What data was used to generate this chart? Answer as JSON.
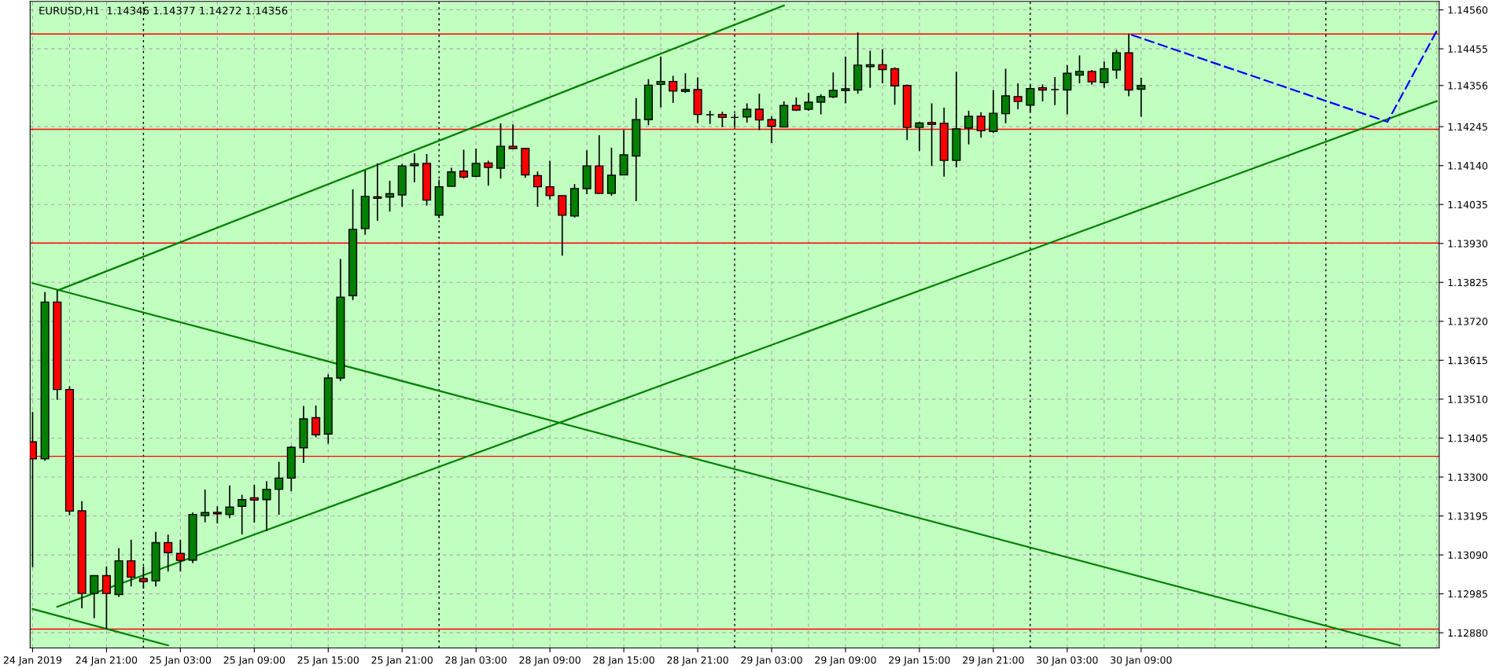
{
  "chart_data": {
    "type": "candlestick",
    "title": "EURUSD,H1  1.14346 1.14377 1.14272 1.14356",
    "categories": [
      "24 Jan 2019",
      null,
      null,
      null,
      null,
      null,
      "24 Jan 21:00",
      null,
      null,
      null,
      null,
      null,
      "25 Jan 03:00",
      null,
      null,
      null,
      null,
      null,
      "25 Jan 09:00",
      null,
      null,
      null,
      null,
      null,
      "25 Jan 15:00",
      null,
      null,
      null,
      null,
      null,
      "25 Jan 21:00",
      null,
      null,
      null,
      null,
      null,
      "28 Jan 03:00",
      null,
      null,
      null,
      null,
      null,
      "28 Jan 09:00",
      null,
      null,
      null,
      null,
      null,
      "28 Jan 15:00",
      null,
      null,
      null,
      null,
      null,
      "28 Jan 21:00",
      null,
      null,
      null,
      null,
      null,
      "29 Jan 03:00",
      null,
      null,
      null,
      null,
      null,
      "29 Jan 09:00",
      null,
      null,
      null,
      null,
      null,
      "29 Jan 15:00",
      null,
      null,
      null,
      null,
      null,
      "29 Jan 21:00",
      null,
      null,
      null,
      null,
      null,
      "30 Jan 03:00",
      null,
      null,
      null,
      null,
      null,
      "30 Jan 09:00",
      null,
      null,
      null,
      null,
      null,
      null,
      null,
      null,
      null,
      null,
      null,
      null,
      null,
      null,
      null,
      null,
      null,
      null,
      null,
      null,
      null,
      null,
      null,
      null
    ],
    "ylim": [
      1.12839,
      1.14583
    ],
    "yticks": [
      {
        "value": 1.1288,
        "label": "1.12880"
      },
      {
        "value": 1.12985,
        "label": "1.12985"
      },
      {
        "value": 1.1309,
        "label": "1.13090"
      },
      {
        "value": 1.13195,
        "label": "1.13195"
      },
      {
        "value": 1.133,
        "label": "1.13300"
      },
      {
        "value": 1.13405,
        "label": "1.13405"
      },
      {
        "value": 1.1351,
        "label": "1.13510"
      },
      {
        "value": 1.13615,
        "label": "1.13615"
      },
      {
        "value": 1.1372,
        "label": "1.13720"
      },
      {
        "value": 1.13825,
        "label": "1.13825"
      },
      {
        "value": 1.1393,
        "label": "1.13930"
      },
      {
        "value": 1.14035,
        "label": "1.14035"
      },
      {
        "value": 1.1414,
        "label": "1.14140"
      },
      {
        "value": 1.14245,
        "label": "1.14245"
      },
      {
        "value": 1.14356,
        "label": "1.14356"
      },
      {
        "value": 1.14455,
        "label": "1.14455"
      },
      {
        "value": 1.1456,
        "label": "1.14560"
      }
    ],
    "grid": true,
    "legend": false,
    "ref_lines": [
      {
        "axis": "y",
        "value": 1.14495,
        "color": "#ff0000",
        "line_style": "solid"
      },
      {
        "axis": "y",
        "value": 1.14238,
        "color": "#ff0000",
        "line_style": "solid"
      },
      {
        "axis": "y",
        "value": 1.13931,
        "color": "#ff0000",
        "line_style": "solid"
      },
      {
        "axis": "y",
        "value": 1.13356,
        "color": "#ff0000",
        "line_style": "solid"
      },
      {
        "axis": "y",
        "value": 1.1289,
        "color": "#ff0000",
        "line_style": "solid"
      }
    ],
    "series": [
      {
        "type": "line",
        "color": "#008000",
        "line_style": "solid",
        "values": [
          null,
          null,
          1.13803,
          null,
          null,
          null,
          null,
          null,
          null,
          null,
          null,
          null,
          null,
          null,
          null,
          null,
          null,
          null,
          null,
          null,
          null,
          null,
          null,
          null,
          null,
          null,
          null,
          null,
          null,
          null,
          null,
          null,
          null,
          null,
          null,
          null,
          null,
          null,
          null,
          null,
          null,
          null,
          null,
          null,
          null,
          null,
          null,
          null,
          null,
          null,
          null,
          null,
          null,
          null,
          null,
          null,
          null,
          null,
          null,
          null,
          null,
          1.14572,
          null,
          null,
          null,
          null,
          null,
          null,
          null,
          null,
          null,
          null,
          null,
          null,
          null,
          null,
          null,
          null,
          null,
          null,
          null,
          null,
          null,
          null,
          null,
          null,
          null,
          null,
          null,
          null,
          null,
          null,
          null,
          null,
          null,
          null,
          null,
          null,
          null,
          null,
          null,
          null,
          null,
          null,
          null,
          null,
          null,
          null,
          null,
          null,
          null,
          null,
          null,
          null,
          null
        ]
      },
      {
        "type": "line",
        "color": "#008000",
        "line_style": "solid",
        "values": [
          null,
          null,
          1.1295,
          null,
          null,
          null,
          null,
          null,
          null,
          null,
          null,
          null,
          null,
          null,
          null,
          null,
          null,
          null,
          null,
          null,
          null,
          null,
          null,
          null,
          null,
          null,
          null,
          null,
          null,
          null,
          null,
          null,
          null,
          null,
          null,
          null,
          null,
          null,
          null,
          null,
          null,
          null,
          null,
          null,
          null,
          null,
          null,
          null,
          null,
          null,
          null,
          null,
          null,
          null,
          null,
          null,
          null,
          null,
          null,
          null,
          null,
          null,
          null,
          null,
          null,
          null,
          null,
          null,
          null,
          null,
          null,
          null,
          null,
          null,
          null,
          null,
          null,
          null,
          null,
          null,
          null,
          null,
          null,
          null,
          null,
          null,
          null,
          null,
          null,
          null,
          null,
          null,
          null,
          null,
          null,
          null,
          null,
          null,
          null,
          null,
          null,
          null,
          null,
          null,
          null,
          null,
          null,
          null,
          null,
          null,
          null,
          null,
          null,
          null,
          1.14314
        ]
      },
      {
        "type": "line",
        "color": "#008000",
        "line_style": "solid",
        "values": [
          1.13823,
          null,
          null,
          null,
          null,
          null,
          null,
          null,
          null,
          null,
          null,
          null,
          null,
          null,
          null,
          null,
          null,
          null,
          null,
          null,
          null,
          null,
          null,
          null,
          null,
          null,
          null,
          null,
          null,
          null,
          null,
          null,
          null,
          null,
          null,
          null,
          null,
          null,
          null,
          null,
          null,
          null,
          null,
          null,
          null,
          null,
          null,
          null,
          null,
          null,
          null,
          null,
          null,
          null,
          null,
          null,
          null,
          null,
          null,
          null,
          null,
          null,
          null,
          null,
          null,
          null,
          null,
          null,
          null,
          null,
          null,
          null,
          null,
          null,
          null,
          null,
          null,
          null,
          null,
          null,
          null,
          null,
          null,
          null,
          null,
          null,
          null,
          null,
          null,
          null,
          null,
          null,
          null,
          null,
          null,
          null,
          null,
          null,
          null,
          null,
          null,
          null,
          null,
          null,
          null,
          null,
          null,
          null,
          null,
          null,
          null,
          1.12846,
          null,
          null,
          null
        ]
      },
      {
        "type": "line",
        "color": "#008000",
        "line_style": "solid",
        "values": [
          1.12944,
          null,
          null,
          null,
          null,
          null,
          null,
          null,
          null,
          null,
          null,
          1.12846,
          null,
          null,
          null,
          null,
          null,
          null,
          null,
          null,
          null,
          null,
          null,
          null,
          null,
          null,
          null,
          null,
          null,
          null,
          null,
          null,
          null,
          null,
          null,
          null,
          null,
          null,
          null,
          null,
          null,
          null,
          null,
          null,
          null,
          null,
          null,
          null,
          null,
          null,
          null,
          null,
          null,
          null,
          null,
          null,
          null,
          null,
          null,
          null,
          null,
          null,
          null,
          null,
          null,
          null,
          null,
          null,
          null,
          null,
          null,
          null,
          null,
          null,
          null,
          null,
          null,
          null,
          null,
          null,
          null,
          null,
          null,
          null,
          null,
          null,
          null,
          null,
          null,
          null,
          null,
          null,
          null,
          null,
          null,
          null,
          null,
          null,
          null,
          null,
          null,
          null,
          null,
          null,
          null,
          null,
          null,
          null,
          null,
          null,
          null,
          null,
          null,
          null,
          null
        ]
      },
      {
        "type": "line",
        "color": "#0000ff",
        "line_style": "dashed",
        "values": [
          null,
          null,
          null,
          null,
          null,
          null,
          null,
          null,
          null,
          null,
          null,
          null,
          null,
          null,
          null,
          null,
          null,
          null,
          null,
          null,
          null,
          null,
          null,
          null,
          null,
          null,
          null,
          null,
          null,
          null,
          null,
          null,
          null,
          null,
          null,
          null,
          null,
          null,
          null,
          null,
          null,
          null,
          null,
          null,
          null,
          null,
          null,
          null,
          null,
          null,
          null,
          null,
          null,
          null,
          null,
          null,
          null,
          null,
          null,
          null,
          null,
          null,
          null,
          null,
          null,
          null,
          null,
          null,
          null,
          null,
          null,
          null,
          null,
          null,
          null,
          null,
          null,
          null,
          null,
          null,
          null,
          null,
          null,
          null,
          null,
          null,
          null,
          null,
          null,
          1.14495,
          null,
          null,
          null,
          null,
          null,
          null,
          null,
          null,
          null,
          null,
          null,
          null,
          null,
          null,
          null,
          null,
          null,
          null,
          null,
          null,
          1.14258,
          null,
          null,
          null,
          1.14503
        ]
      },
      {
        "ohlc": [
          [
            1.13395,
            1.13476,
            1.13057,
            1.13349
          ],
          [
            1.13349,
            1.13799,
            1.13344,
            1.13772
          ],
          [
            1.13772,
            1.13803,
            1.13508,
            1.13536
          ],
          [
            1.13536,
            1.13545,
            1.13197,
            1.13208
          ],
          [
            1.13209,
            1.13235,
            1.12946,
            1.12986
          ],
          [
            1.12986,
            1.13034,
            1.12919,
            1.13034
          ],
          [
            1.13034,
            1.13059,
            1.1289,
            1.12986
          ],
          [
            1.12983,
            1.13108,
            1.12977,
            1.13074
          ],
          [
            1.13074,
            1.13131,
            1.13005,
            1.1303
          ],
          [
            1.13026,
            1.13059,
            1.12999,
            1.13018
          ],
          [
            1.1302,
            1.13152,
            1.13005,
            1.13123
          ],
          [
            1.13123,
            1.13145,
            1.13045,
            1.13096
          ],
          [
            1.13094,
            1.13131,
            1.13045,
            1.13075
          ],
          [
            1.13076,
            1.13204,
            1.13068,
            1.13199
          ],
          [
            1.13196,
            1.13266,
            1.13178,
            1.13204
          ],
          [
            1.13205,
            1.13221,
            1.13175,
            1.13201
          ],
          [
            1.13199,
            1.13277,
            1.13189,
            1.13219
          ],
          [
            1.13221,
            1.13252,
            1.13145,
            1.13239
          ],
          [
            1.13244,
            1.13279,
            1.13177,
            1.13238
          ],
          [
            1.13239,
            1.13289,
            1.13154,
            1.13267
          ],
          [
            1.13267,
            1.13341,
            1.13198,
            1.13297
          ],
          [
            1.13297,
            1.13384,
            1.13262,
            1.1338
          ],
          [
            1.13379,
            1.13492,
            1.13338,
            1.13457
          ],
          [
            1.1346,
            1.13493,
            1.13407,
            1.13414
          ],
          [
            1.13416,
            1.13577,
            1.1339,
            1.13567
          ],
          [
            1.13567,
            1.13888,
            1.13559,
            1.13785
          ],
          [
            1.13789,
            1.14076,
            1.13777,
            1.13968
          ],
          [
            1.1397,
            1.14127,
            1.13954,
            1.14057
          ],
          [
            1.14056,
            1.14146,
            1.13991,
            1.14052
          ],
          [
            1.14055,
            1.14099,
            1.14016,
            1.14064
          ],
          [
            1.14061,
            1.14144,
            1.14029,
            1.14139
          ],
          [
            1.1414,
            1.14173,
            1.14095,
            1.14145
          ],
          [
            1.14146,
            1.14171,
            1.14032,
            1.14047
          ],
          [
            1.14006,
            1.14102,
            1.13998,
            1.14083
          ],
          [
            1.14084,
            1.14134,
            1.14084,
            1.14123
          ],
          [
            1.14125,
            1.14183,
            1.14105,
            1.14109
          ],
          [
            1.14111,
            1.14186,
            1.14109,
            1.14146
          ],
          [
            1.14147,
            1.14153,
            1.14086,
            1.14135
          ],
          [
            1.14133,
            1.14254,
            1.14105,
            1.14192
          ],
          [
            1.14192,
            1.14251,
            1.14184,
            1.14186
          ],
          [
            1.14186,
            1.14188,
            1.14107,
            1.14115
          ],
          [
            1.14113,
            1.14124,
            1.14029,
            1.14083
          ],
          [
            1.14083,
            1.14153,
            1.14049,
            1.14059
          ],
          [
            1.14059,
            1.14059,
            1.13897,
            1.14006
          ],
          [
            1.14004,
            1.1409,
            1.14,
            1.14078
          ],
          [
            1.14078,
            1.14181,
            1.14063,
            1.14139
          ],
          [
            1.14139,
            1.14222,
            1.14064,
            1.14065
          ],
          [
            1.14065,
            1.14188,
            1.14059,
            1.14114
          ],
          [
            1.14115,
            1.14236,
            1.14115,
            1.14169
          ],
          [
            1.14166,
            1.14322,
            1.14044,
            1.14264
          ],
          [
            1.14264,
            1.14373,
            1.14249,
            1.14357
          ],
          [
            1.14359,
            1.14434,
            1.14297,
            1.14367
          ],
          [
            1.14367,
            1.14382,
            1.14309,
            1.14341
          ],
          [
            1.1434,
            1.14389,
            1.14336,
            1.14345
          ],
          [
            1.14345,
            1.14378,
            1.14255,
            1.14278
          ],
          [
            1.14277,
            1.14288,
            1.14252,
            1.14277
          ],
          [
            1.14278,
            1.14285,
            1.14244,
            1.1427
          ],
          [
            1.1427,
            1.1428,
            1.14244,
            1.1427
          ],
          [
            1.14271,
            1.14308,
            1.14256,
            1.14292
          ],
          [
            1.14292,
            1.14334,
            1.14236,
            1.14263
          ],
          [
            1.14264,
            1.14273,
            1.14201,
            1.14246
          ],
          [
            1.14244,
            1.14313,
            1.14244,
            1.14302
          ],
          [
            1.14302,
            1.14324,
            1.14287,
            1.1429
          ],
          [
            1.14292,
            1.14336,
            1.14288,
            1.14311
          ],
          [
            1.14311,
            1.14332,
            1.14278,
            1.14326
          ],
          [
            1.14325,
            1.14391,
            1.14322,
            1.14343
          ],
          [
            1.14342,
            1.14434,
            1.14308,
            1.14347
          ],
          [
            1.14344,
            1.14499,
            1.14334,
            1.14411
          ],
          [
            1.14407,
            1.1445,
            1.1435,
            1.14412
          ],
          [
            1.14412,
            1.14454,
            1.14362,
            1.14399
          ],
          [
            1.14401,
            1.14405,
            1.14304,
            1.14355
          ],
          [
            1.14356,
            1.14359,
            1.14209,
            1.14243
          ],
          [
            1.14243,
            1.14258,
            1.14179,
            1.14255
          ],
          [
            1.14256,
            1.14308,
            1.14139,
            1.14251
          ],
          [
            1.14254,
            1.14296,
            1.1411,
            1.14154
          ],
          [
            1.14154,
            1.14393,
            1.14135,
            1.14239
          ],
          [
            1.14241,
            1.14288,
            1.14197,
            1.14273
          ],
          [
            1.14273,
            1.14284,
            1.14215,
            1.14234
          ],
          [
            1.14232,
            1.14344,
            1.14228,
            1.14281
          ],
          [
            1.1428,
            1.14401,
            1.14254,
            1.14328
          ],
          [
            1.14326,
            1.14362,
            1.14292,
            1.14313
          ],
          [
            1.14303,
            1.14358,
            1.14285,
            1.14348
          ],
          [
            1.1435,
            1.14359,
            1.14313,
            1.14344
          ],
          [
            1.14345,
            1.14379,
            1.14303,
            1.14345
          ],
          [
            1.14344,
            1.14411,
            1.14278,
            1.14389
          ],
          [
            1.14384,
            1.14437,
            1.14362,
            1.14394
          ],
          [
            1.14394,
            1.14398,
            1.14358,
            1.14366
          ],
          [
            1.14364,
            1.14421,
            1.1435,
            1.14401
          ],
          [
            1.14398,
            1.14452,
            1.14374,
            1.14444
          ],
          [
            1.14444,
            1.14495,
            1.14327,
            1.14344
          ],
          [
            1.14346,
            1.14377,
            1.14272,
            1.14356
          ],
          null,
          null,
          null,
          null,
          null,
          null,
          null,
          null,
          null,
          null,
          null,
          null,
          null,
          null,
          null,
          null,
          null,
          null,
          null,
          null,
          null,
          null,
          null,
          null
        ],
        "colors": [
          "#ff0000",
          "#008000",
          "#ff0000",
          "#ff0000",
          "#ff0000",
          "#008000",
          "#ff0000",
          "#008000",
          "#ff0000",
          "#ff0000",
          "#008000",
          "#ff0000",
          "#ff0000",
          "#008000",
          "#008000",
          "#ff0000",
          "#008000",
          "#008000",
          "#ff0000",
          "#008000",
          "#008000",
          "#008000",
          "#008000",
          "#ff0000",
          "#008000",
          "#008000",
          "#008000",
          "#008000",
          "#ff0000",
          "#008000",
          "#008000",
          "#008000",
          "#ff0000",
          "#008000",
          "#008000",
          "#ff0000",
          "#008000",
          "#ff0000",
          "#008000",
          "#ff0000",
          "#ff0000",
          "#ff0000",
          "#ff0000",
          "#ff0000",
          "#008000",
          "#008000",
          "#ff0000",
          "#008000",
          "#008000",
          "#008000",
          "#008000",
          "#008000",
          "#ff0000",
          "#008000",
          "#ff0000",
          "#000000",
          "#ff0000",
          "#000000",
          "#008000",
          "#ff0000",
          "#ff0000",
          "#008000",
          "#ff0000",
          "#008000",
          "#008000",
          "#008000",
          "#008000",
          "#008000",
          "#008000",
          "#ff0000",
          "#ff0000",
          "#ff0000",
          "#008000",
          "#ff0000",
          "#ff0000",
          "#008000",
          "#008000",
          "#ff0000",
          "#008000",
          "#008000",
          "#ff0000",
          "#008000",
          "#ff0000",
          "#000000",
          "#008000",
          "#008000",
          "#ff0000",
          "#008000",
          "#008000",
          "#ff0000",
          "#008000",
          null,
          null,
          null,
          null,
          null,
          null,
          null,
          null,
          null,
          null,
          null,
          null,
          null,
          null,
          null,
          null,
          null,
          null,
          null,
          null,
          null,
          null,
          null,
          null
        ]
      }
    ]
  }
}
